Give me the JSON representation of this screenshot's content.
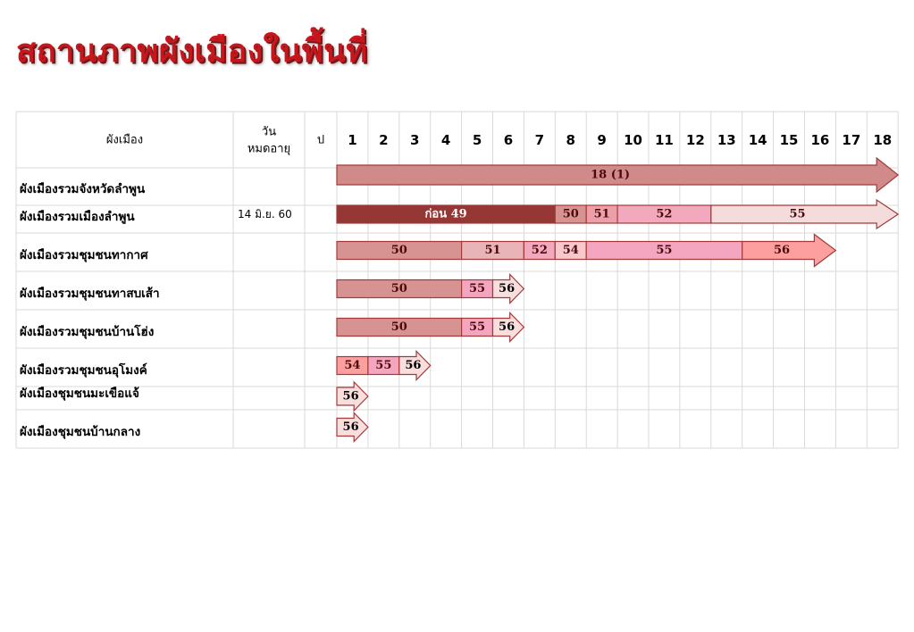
{
  "title": "สถานภาพผังเมืองในพื้นที่",
  "chart_data": {
    "type": "table",
    "headers": {
      "plan": "ผังเมือง",
      "expiry": "วัน\nหมดอายุ",
      "year_col": "ป"
    },
    "years": [
      "1",
      "2",
      "3",
      "4",
      "5",
      "6",
      "7",
      "8",
      "9",
      "10",
      "11",
      "12",
      "13",
      "14",
      "15",
      "16",
      "17",
      "18"
    ],
    "rows": [
      {
        "name": "ผังเมืองรวมจังหวัดลำพูน",
        "expiry": "",
        "segments": [
          {
            "label": "18 (1)",
            "start": 1,
            "end": 18,
            "color": "#d08a89",
            "text_color": "#4a0a0a",
            "arrow": true
          }
        ]
      },
      {
        "name": "ผังเมืองรวมเมืองลำพูน",
        "expiry": "14 มิ.ย. 60",
        "segments": [
          {
            "label": "ก่อน 49",
            "start": 1,
            "end": 7,
            "color": "#953735",
            "text_color": "#ffffff"
          },
          {
            "label": "50",
            "start": 8,
            "end": 8,
            "color": "#d79292",
            "text_color": "#4a0a0a"
          },
          {
            "label": "51",
            "start": 9,
            "end": 9,
            "color": "#ec9ea9",
            "text_color": "#4a0a0a"
          },
          {
            "label": "52",
            "start": 10,
            "end": 12,
            "color": "#f3a9bd",
            "text_color": "#4a0a0a"
          },
          {
            "label": "55",
            "start": 13,
            "end": 18,
            "color": "#f5dcdc",
            "text_color": "#4a0a0a",
            "arrow": true
          }
        ]
      },
      {
        "name": "ผังเมืองรวมชุมชนทากาศ",
        "expiry": "",
        "segments": [
          {
            "label": "50",
            "start": 1,
            "end": 4,
            "color": "#d79292",
            "text_color": "#4a0a0a"
          },
          {
            "label": "51",
            "start": 5,
            "end": 6,
            "color": "#e8b4b8",
            "text_color": "#4a0a0a"
          },
          {
            "label": "52",
            "start": 7,
            "end": 7,
            "color": "#f3a9bd",
            "text_color": "#4a0a0a"
          },
          {
            "label": "54",
            "start": 8,
            "end": 8,
            "color": "#f8c8cd",
            "text_color": "#4a0a0a"
          },
          {
            "label": "55",
            "start": 9,
            "end": 13,
            "color": "#f4a6c0",
            "text_color": "#4a0a0a"
          },
          {
            "label": "56",
            "start": 14,
            "end": 16,
            "color": "#fd9f9f",
            "text_color": "#4a0a0a",
            "arrow": true
          }
        ]
      },
      {
        "name": "ผังเมืองรวมชุมชนทาสบเส้า",
        "expiry": "",
        "segments": [
          {
            "label": "50",
            "start": 1,
            "end": 4,
            "color": "#d79292",
            "text_color": "#4a0a0a"
          },
          {
            "label": "55",
            "start": 5,
            "end": 5,
            "color": "#f4a6c0",
            "text_color": "#4a0a0a"
          },
          {
            "label": "56",
            "start": 6,
            "end": 6,
            "color": "#f9dede",
            "text_color": "#000000",
            "arrow": true
          }
        ]
      },
      {
        "name": "ผังเมืองรวมชุมชนบ้านโฮ่ง",
        "expiry": "",
        "segments": [
          {
            "label": "50",
            "start": 1,
            "end": 4,
            "color": "#d79292",
            "text_color": "#4a0a0a"
          },
          {
            "label": "55",
            "start": 5,
            "end": 5,
            "color": "#f4a6c0",
            "text_color": "#4a0a0a"
          },
          {
            "label": "56",
            "start": 6,
            "end": 6,
            "color": "#f9dede",
            "text_color": "#000000",
            "arrow": true
          }
        ]
      },
      {
        "name": "ผังเมืองรวมชุมชนอุโมงค์",
        "expiry": "",
        "segments": [
          {
            "label": "54",
            "start": 1,
            "end": 1,
            "color": "#fd9f9f",
            "text_color": "#4a0a0a"
          },
          {
            "label": "55",
            "start": 2,
            "end": 2,
            "color": "#f4a6c0",
            "text_color": "#4a0a0a"
          },
          {
            "label": "56",
            "start": 3,
            "end": 3,
            "color": "#f9dede",
            "text_color": "#000000",
            "arrow": true
          }
        ]
      },
      {
        "name": "ผังเมืองชุมชนมะเขือแจ้",
        "expiry": "",
        "segments": [
          {
            "label": "56",
            "start": 1,
            "end": 1,
            "color": "#f9dede",
            "text_color": "#000000",
            "arrow": true
          }
        ]
      },
      {
        "name": "ผังเมืองชุมชนบ้านกลาง",
        "expiry": "",
        "segments": [
          {
            "label": "56",
            "start": 1,
            "end": 1,
            "color": "#f9dede",
            "text_color": "#000000",
            "arrow": true
          }
        ]
      }
    ],
    "colors": {
      "title": "#c8161d",
      "border": "#a33a3a",
      "grid": "#d9d9d9"
    }
  }
}
